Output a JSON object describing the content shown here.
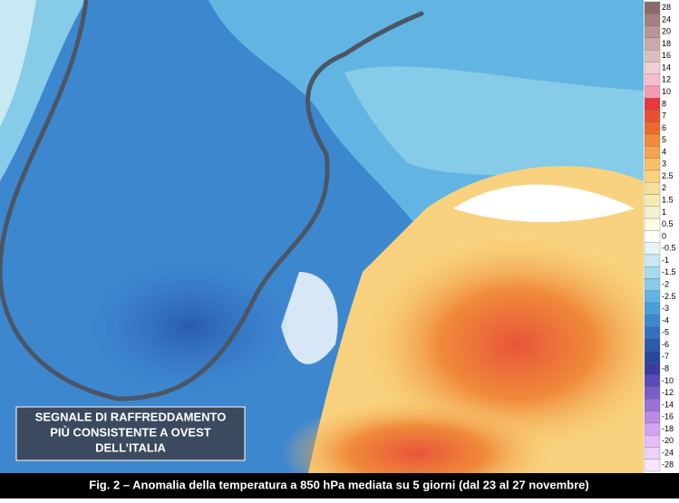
{
  "annotation": {
    "lines": [
      "SEGNALE DI RAFFREDDAMENTO",
      "PIÙ CONSISTENTE A OVEST",
      "DELL’ITALIA"
    ]
  },
  "caption": "Fig. 2 – Anomalia della temperatura a 850 hPa mediata su 5 giorni (dal 23 al 27 novembre)",
  "legend": {
    "items": [
      {
        "label": "28",
        "color": "#8c6b6b"
      },
      {
        "label": "24",
        "color": "#a58080"
      },
      {
        "label": "20",
        "color": "#b99595"
      },
      {
        "label": "18",
        "color": "#cca9a9"
      },
      {
        "label": "16",
        "color": "#ddbcbc"
      },
      {
        "label": "14",
        "color": "#f0cfcf"
      },
      {
        "label": "12",
        "color": "#f7bccb"
      },
      {
        "label": "10",
        "color": "#f49bb0"
      },
      {
        "label": "8",
        "color": "#e8383d"
      },
      {
        "label": "7",
        "color": "#e85030"
      },
      {
        "label": "6",
        "color": "#eb6a2e"
      },
      {
        "label": "5",
        "color": "#f08a3a"
      },
      {
        "label": "4",
        "color": "#f4a450"
      },
      {
        "label": "3",
        "color": "#f8bf66"
      },
      {
        "label": "2.5",
        "color": "#f8d27e"
      },
      {
        "label": "2",
        "color": "#f7e19a"
      },
      {
        "label": "1.5",
        "color": "#f5ecb5"
      },
      {
        "label": "1",
        "color": "#f3f0cf"
      },
      {
        "label": "0.5",
        "color": "#fffbe6"
      },
      {
        "label": "0",
        "color": "#ffffff"
      },
      {
        "label": "-0.5",
        "color": "#e8f4fa"
      },
      {
        "label": "-1",
        "color": "#c8e8f3"
      },
      {
        "label": "-1.5",
        "color": "#a8dbee"
      },
      {
        "label": "-2",
        "color": "#86cbe8"
      },
      {
        "label": "-2.5",
        "color": "#62b5e2"
      },
      {
        "label": "-3",
        "color": "#4a9fd9"
      },
      {
        "label": "-4",
        "color": "#3d87cf"
      },
      {
        "label": "-5",
        "color": "#3470c0"
      },
      {
        "label": "-6",
        "color": "#2b5aaf"
      },
      {
        "label": "-7",
        "color": "#26489c"
      },
      {
        "label": "-8",
        "color": "#3b3aa0"
      },
      {
        "label": "-10",
        "color": "#5a4cb8"
      },
      {
        "label": "-12",
        "color": "#7a5ec8"
      },
      {
        "label": "-14",
        "color": "#9a72d8"
      },
      {
        "label": "-16",
        "color": "#b98ae4"
      },
      {
        "label": "-18",
        "color": "#d4a2ee"
      },
      {
        "label": "-20",
        "color": "#e5bcf4"
      },
      {
        "label": "-24",
        "color": "#efd2f8"
      },
      {
        "label": "-28",
        "color": "#f6e6fb"
      }
    ]
  }
}
